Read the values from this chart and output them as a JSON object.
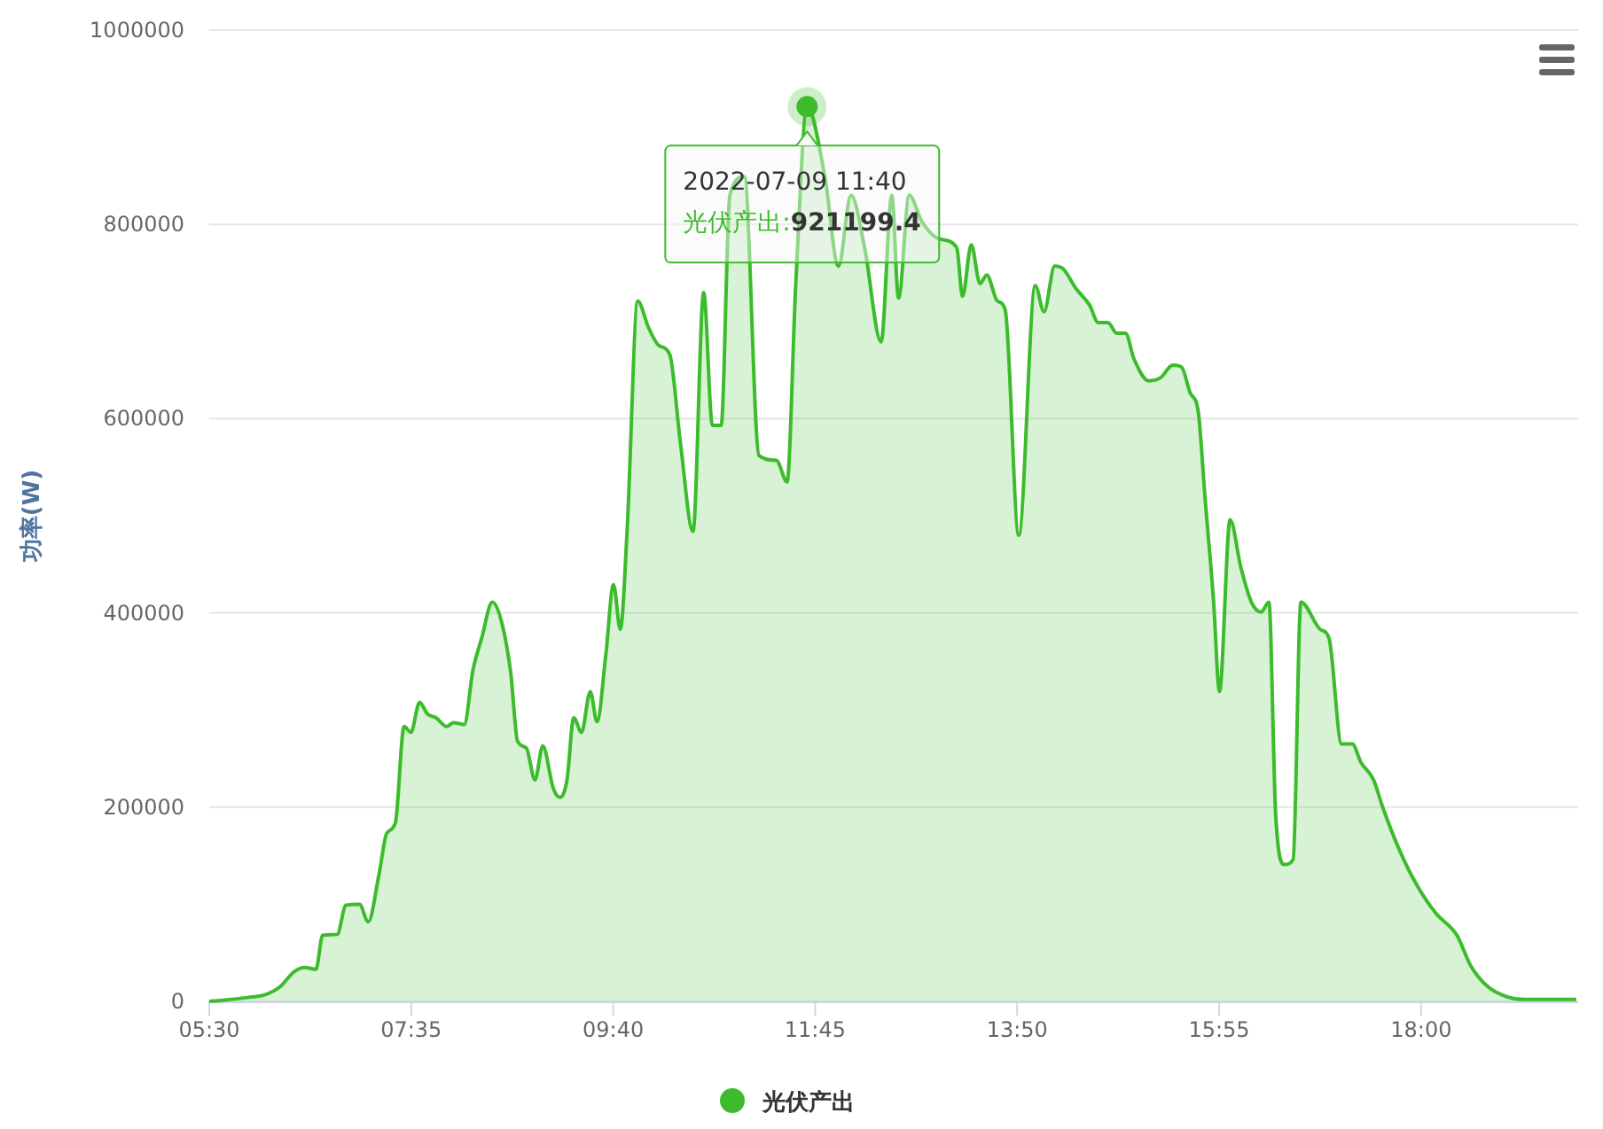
{
  "chart_data": {
    "type": "area",
    "ylabel": "功率(W)",
    "x": [
      5.5,
      5.9,
      6.08,
      6.23,
      6.38,
      6.49,
      6.6,
      6.67,
      6.82,
      6.91,
      7.05,
      7.14,
      7.25,
      7.33,
      7.42,
      7.51,
      7.58,
      7.67,
      7.75,
      7.84,
      7.95,
      8.02,
      8.13,
      8.22,
      8.31,
      8.42,
      8.52,
      8.61,
      8.68,
      8.77,
      8.86,
      8.94,
      9.05,
      9.12,
      9.19,
      9.26,
      9.34,
      9.43,
      9.5,
      9.59,
      9.67,
      9.74,
      9.81,
      9.92,
      10.03,
      10.14,
      10.25,
      10.36,
      10.49,
      10.6,
      10.69,
      10.78,
      10.87,
      11.02,
      11.17,
      11.35,
      11.46,
      11.55,
      11.6667,
      11.85,
      11.99,
      12.12,
      12.26,
      12.43,
      12.54,
      12.61,
      12.72,
      12.85,
      13.03,
      13.21,
      13.27,
      13.36,
      13.45,
      13.52,
      13.63,
      13.71,
      13.85,
      14.02,
      14.11,
      14.22,
      14.31,
      14.44,
      14.58,
      14.67,
      14.77,
      14.86,
      14.95,
      15.04,
      15.19,
      15.31,
      15.44,
      15.53,
      15.62,
      15.7,
      15.77,
      15.86,
      15.92,
      16.03,
      16.14,
      16.25,
      16.35,
      16.43,
      16.5,
      16.59,
      16.68,
      16.76,
      16.96,
      17.05,
      17.18,
      17.29,
      17.38,
      17.51,
      17.6,
      17.78,
      17.96,
      18.15,
      18.37,
      18.51,
      18.69,
      18.88,
      19.06,
      19.6
    ],
    "series": [
      {
        "name": "光伏产出",
        "color": "#3cbc2c",
        "values": [
          0,
          4000,
          7000,
          15000,
          31000,
          35000,
          33000,
          68000,
          69000,
          99000,
          100000,
          82000,
          130000,
          173000,
          184000,
          283000,
          277000,
          308000,
          296000,
          292000,
          283000,
          287000,
          285000,
          341000,
          374000,
          411000,
          389000,
          338000,
          268000,
          261000,
          228000,
          263000,
          219000,
          210000,
          228000,
          292000,
          277000,
          319000,
          288000,
          356000,
          429000,
          383000,
          484000,
          721000,
          694000,
          675000,
          666000,
          575000,
          484000,
          730000,
          593000,
          593000,
          830000,
          849000,
          562000,
          557000,
          535000,
          739000,
          921199.4,
          849000,
          757000,
          830000,
          776000,
          679000,
          830000,
          724000,
          830000,
          803000,
          785000,
          776000,
          726000,
          779000,
          739000,
          748000,
          721000,
          712000,
          480000,
          737000,
          710000,
          757000,
          754000,
          734000,
          717000,
          699000,
          699000,
          688000,
          688000,
          661000,
          639000,
          642000,
          655000,
          653000,
          626000,
          608000,
          520000,
          411000,
          319000,
          496000,
          447000,
          411000,
          401000,
          411000,
          192000,
          141000,
          146000,
          411000,
          383000,
          374000,
          265000,
          265000,
          246000,
          228000,
          201000,
          155000,
          119000,
          91000,
          68000,
          37000,
          15000,
          5000,
          2000,
          2000
        ]
      }
    ],
    "xlim": [
      5.5,
      19.62
    ],
    "xticks": [
      {
        "value": 5.5,
        "label": "05:30"
      },
      {
        "value": 7.5833,
        "label": "07:35"
      },
      {
        "value": 9.6667,
        "label": "09:40"
      },
      {
        "value": 11.75,
        "label": "11:45"
      },
      {
        "value": 13.8333,
        "label": "13:50"
      },
      {
        "value": 15.9167,
        "label": "15:55"
      },
      {
        "value": 18,
        "label": "18:00"
      }
    ],
    "ylim": [
      0,
      1000000
    ],
    "yticks": [
      0,
      200000,
      400000,
      600000,
      800000,
      1000000
    ],
    "grid": "y",
    "legend": "bottom",
    "annotations": [
      {
        "text": "2022-07-09 11:40\n光伏产出:921199.4",
        "x": 11.6667,
        "y": 921199.4
      }
    ]
  }
}
